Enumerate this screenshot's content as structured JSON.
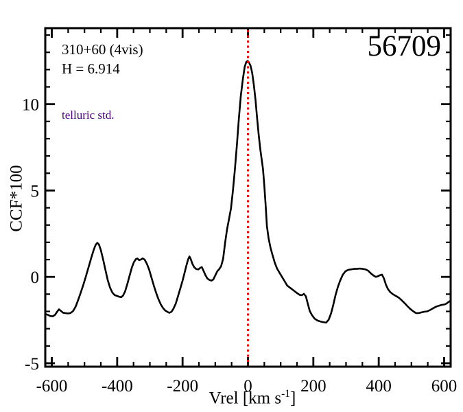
{
  "annotations": {
    "target_label": "310+60 (4vis)",
    "h_mag": "H = 6.914",
    "telluric": "telluric std.",
    "epoch": "56709"
  },
  "colors": {
    "axis": "#000000",
    "curve": "#000000",
    "marker_line": "#ee0000",
    "telluric_text": "#4b0082",
    "background": "#ffffff"
  },
  "chart_data": {
    "type": "line",
    "title": "56709",
    "ylabel": "CCF*100",
    "xlabel_parts": {
      "main": "Vrel [km s",
      "sup": "-1",
      "end": "]"
    },
    "xlim": [
      -620,
      620
    ],
    "ylim": [
      -5.2,
      14.4
    ],
    "x_major_ticks": [
      -600,
      -400,
      -200,
      0,
      200,
      400,
      600
    ],
    "x_minor_step": 50,
    "y_major_ticks": [
      -5,
      0,
      5,
      10
    ],
    "y_minor_step": 1,
    "grid": false,
    "legend": "none",
    "marker_line_x": 0,
    "series": [
      {
        "name": "CCF",
        "points": [
          [
            -620,
            -2.15
          ],
          [
            -612,
            -2.2
          ],
          [
            -604,
            -2.27
          ],
          [
            -597,
            -2.28
          ],
          [
            -590,
            -2.2
          ],
          [
            -583,
            -2.0
          ],
          [
            -578,
            -1.88
          ],
          [
            -572,
            -1.97
          ],
          [
            -566,
            -2.07
          ],
          [
            -559,
            -2.1
          ],
          [
            -551,
            -2.12
          ],
          [
            -543,
            -2.1
          ],
          [
            -535,
            -1.98
          ],
          [
            -527,
            -1.72
          ],
          [
            -519,
            -1.32
          ],
          [
            -511,
            -0.88
          ],
          [
            -503,
            -0.42
          ],
          [
            -495,
            0.08
          ],
          [
            -487,
            0.6
          ],
          [
            -479,
            1.12
          ],
          [
            -472,
            1.55
          ],
          [
            -466,
            1.85
          ],
          [
            -461,
            1.97
          ],
          [
            -456,
            1.88
          ],
          [
            -450,
            1.55
          ],
          [
            -443,
            1.0
          ],
          [
            -436,
            0.4
          ],
          [
            -429,
            -0.18
          ],
          [
            -422,
            -0.62
          ],
          [
            -415,
            -0.9
          ],
          [
            -408,
            -1.05
          ],
          [
            -401,
            -1.1
          ],
          [
            -394,
            -1.15
          ],
          [
            -388,
            -1.18
          ],
          [
            -382,
            -1.08
          ],
          [
            -376,
            -0.85
          ],
          [
            -369,
            -0.42
          ],
          [
            -362,
            0.08
          ],
          [
            -355,
            0.55
          ],
          [
            -349,
            0.85
          ],
          [
            -343,
            1.02
          ],
          [
            -338,
            1.06
          ],
          [
            -333,
            0.97
          ],
          [
            -328,
            1.0
          ],
          [
            -322,
            1.07
          ],
          [
            -316,
            1.0
          ],
          [
            -309,
            0.75
          ],
          [
            -302,
            0.4
          ],
          [
            -295,
            -0.05
          ],
          [
            -288,
            -0.5
          ],
          [
            -281,
            -0.92
          ],
          [
            -274,
            -1.28
          ],
          [
            -267,
            -1.58
          ],
          [
            -260,
            -1.8
          ],
          [
            -253,
            -1.95
          ],
          [
            -246,
            -2.03
          ],
          [
            -240,
            -2.08
          ],
          [
            -234,
            -2.02
          ],
          [
            -228,
            -1.85
          ],
          [
            -221,
            -1.55
          ],
          [
            -214,
            -1.12
          ],
          [
            -207,
            -0.68
          ],
          [
            -200,
            -0.22
          ],
          [
            -194,
            0.22
          ],
          [
            -188,
            0.68
          ],
          [
            -183,
            1.02
          ],
          [
            -179,
            1.18
          ],
          [
            -175,
            1.03
          ],
          [
            -170,
            0.75
          ],
          [
            -164,
            0.55
          ],
          [
            -158,
            0.45
          ],
          [
            -152,
            0.43
          ],
          [
            -146,
            0.52
          ],
          [
            -141,
            0.56
          ],
          [
            -136,
            0.35
          ],
          [
            -130,
            0.1
          ],
          [
            -124,
            -0.1
          ],
          [
            -118,
            -0.18
          ],
          [
            -112,
            -0.22
          ],
          [
            -106,
            -0.15
          ],
          [
            -100,
            0.08
          ],
          [
            -94,
            0.32
          ],
          [
            -88,
            0.45
          ],
          [
            -82,
            0.62
          ],
          [
            -76,
            1.05
          ],
          [
            -70,
            1.95
          ],
          [
            -64,
            2.75
          ],
          [
            -58,
            3.35
          ],
          [
            -52,
            3.95
          ],
          [
            -46,
            5.0
          ],
          [
            -40,
            6.2
          ],
          [
            -34,
            7.6
          ],
          [
            -28,
            9.15
          ],
          [
            -22,
            10.45
          ],
          [
            -16,
            11.4
          ],
          [
            -10,
            12.15
          ],
          [
            -5,
            12.45
          ],
          [
            -1,
            12.5
          ],
          [
            3,
            12.42
          ],
          [
            8,
            12.22
          ],
          [
            13,
            11.8
          ],
          [
            18,
            11.1
          ],
          [
            23,
            10.25
          ],
          [
            28,
            9.2
          ],
          [
            33,
            8.2
          ],
          [
            38,
            7.35
          ],
          [
            42,
            6.8
          ],
          [
            46,
            6.25
          ],
          [
            50,
            5.3
          ],
          [
            54,
            4.2
          ],
          [
            58,
            2.95
          ],
          [
            63,
            2.25
          ],
          [
            69,
            1.68
          ],
          [
            75,
            1.28
          ],
          [
            82,
            0.82
          ],
          [
            89,
            0.48
          ],
          [
            96,
            0.25
          ],
          [
            104,
            0.0
          ],
          [
            112,
            -0.25
          ],
          [
            120,
            -0.5
          ],
          [
            128,
            -0.62
          ],
          [
            136,
            -0.73
          ],
          [
            144,
            -0.85
          ],
          [
            152,
            -0.96
          ],
          [
            159,
            -1.05
          ],
          [
            165,
            -1.06
          ],
          [
            171,
            -0.98
          ],
          [
            177,
            -1.12
          ],
          [
            183,
            -1.55
          ],
          [
            189,
            -1.98
          ],
          [
            196,
            -2.22
          ],
          [
            204,
            -2.42
          ],
          [
            212,
            -2.52
          ],
          [
            221,
            -2.58
          ],
          [
            230,
            -2.62
          ],
          [
            239,
            -2.65
          ],
          [
            247,
            -2.48
          ],
          [
            254,
            -2.12
          ],
          [
            261,
            -1.62
          ],
          [
            268,
            -1.05
          ],
          [
            275,
            -0.58
          ],
          [
            282,
            -0.22
          ],
          [
            290,
            0.12
          ],
          [
            298,
            0.32
          ],
          [
            306,
            0.4
          ],
          [
            315,
            0.43
          ],
          [
            324,
            0.46
          ],
          [
            333,
            0.46
          ],
          [
            342,
            0.48
          ],
          [
            351,
            0.46
          ],
          [
            360,
            0.43
          ],
          [
            368,
            0.35
          ],
          [
            376,
            0.2
          ],
          [
            384,
            0.08
          ],
          [
            391,
            0.0
          ],
          [
            398,
            0.04
          ],
          [
            404,
            0.1
          ],
          [
            410,
            0.13
          ],
          [
            416,
            -0.1
          ],
          [
            422,
            -0.45
          ],
          [
            428,
            -0.7
          ],
          [
            435,
            -0.88
          ],
          [
            443,
            -1.0
          ],
          [
            452,
            -1.1
          ],
          [
            461,
            -1.2
          ],
          [
            470,
            -1.35
          ],
          [
            479,
            -1.52
          ],
          [
            488,
            -1.7
          ],
          [
            497,
            -1.87
          ],
          [
            506,
            -2.0
          ],
          [
            514,
            -2.1
          ],
          [
            522,
            -2.1
          ],
          [
            530,
            -2.06
          ],
          [
            539,
            -2.02
          ],
          [
            548,
            -2.0
          ],
          [
            557,
            -1.92
          ],
          [
            566,
            -1.82
          ],
          [
            575,
            -1.73
          ],
          [
            584,
            -1.67
          ],
          [
            593,
            -1.62
          ],
          [
            601,
            -1.6
          ],
          [
            607,
            -1.55
          ],
          [
            613,
            -1.46
          ],
          [
            620,
            -1.38
          ]
        ]
      }
    ]
  }
}
